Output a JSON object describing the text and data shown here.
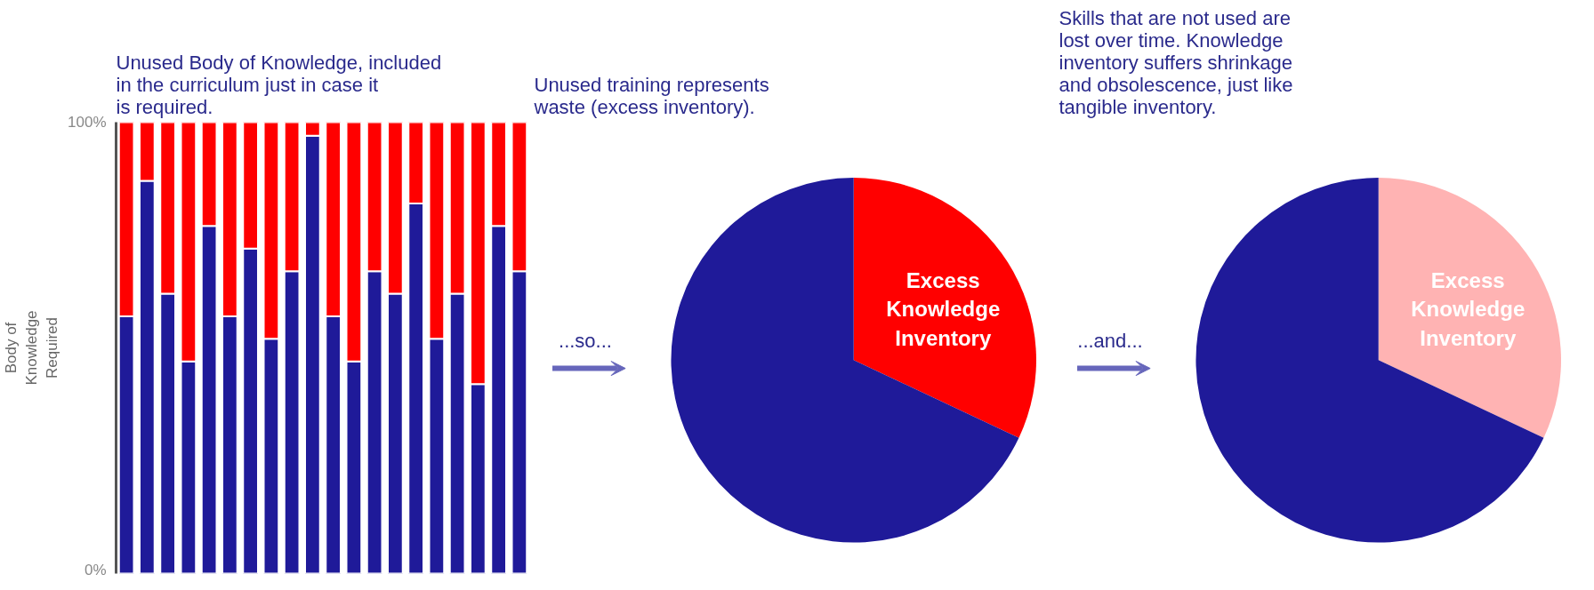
{
  "chart_data": [
    {
      "type": "bar",
      "stacked": true,
      "title": "Unused Body of Knowledge, included in the curriculum just in case it is required.",
      "ylabel": "Body of Knowledge Required",
      "categories": [
        null,
        null,
        null,
        null,
        null,
        null,
        null,
        null,
        null,
        null,
        null,
        null,
        null,
        null,
        null,
        null,
        null,
        null,
        null,
        null
      ],
      "series": [
        {
          "color": "#1f1a99",
          "values": [
            57,
            87,
            62,
            47,
            77,
            57,
            72,
            52,
            67,
            97,
            57,
            47,
            67,
            62,
            82,
            52,
            62,
            42,
            77,
            67
          ]
        },
        {
          "color": "#ff0000",
          "values": [
            43,
            13,
            38,
            53,
            23,
            43,
            28,
            48,
            33,
            3,
            43,
            53,
            33,
            38,
            18,
            48,
            38,
            58,
            23,
            33
          ]
        }
      ],
      "ylim": [
        0,
        100
      ],
      "yticks": [
        {
          "value": 0,
          "label": "0%"
        },
        {
          "value": 100,
          "label": "100%"
        }
      ]
    },
    {
      "type": "pie",
      "title": "Unused training represents waste (excess inventory).",
      "categories": [
        "Excess Knowledge Inventory",
        null
      ],
      "values": [
        32,
        68
      ],
      "colors": [
        "#ff0000",
        "#1f1a99"
      ],
      "annotations": [
        "...so..."
      ]
    },
    {
      "type": "pie",
      "title": "Skills that are not used are lost over time.  Knowledge inventory suffers shrinkage and obsolescence, just like tangible inventory.",
      "categories": [
        "Excess Knowledge Inventory",
        null
      ],
      "values": [
        32,
        68
      ],
      "colors": [
        "#ffb3b3",
        "#1f1a99"
      ],
      "annotations": [
        "...and..."
      ]
    }
  ]
}
